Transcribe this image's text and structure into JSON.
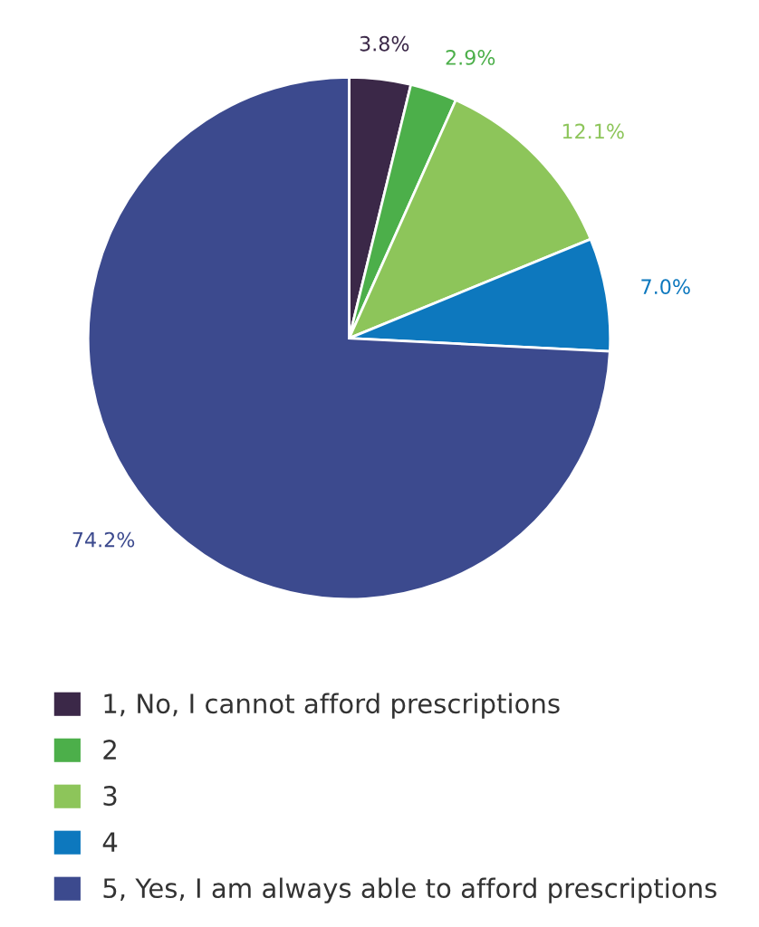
{
  "chart_data": {
    "type": "pie",
    "categories": [
      "1, No, I cannot afford prescriptions",
      "2",
      "3",
      "4",
      "5, Yes, I am always able to afford prescriptions"
    ],
    "values": [
      3.8,
      2.9,
      12.1,
      7.0,
      74.2
    ],
    "value_labels": [
      "3.8%",
      "2.9%",
      "12.1%",
      "7.0%",
      "74.2%"
    ],
    "colors": [
      "#3b2848",
      "#4caf4a",
      "#8dc55a",
      "#0d78be",
      "#3c4a8e"
    ],
    "legend": "bottom"
  }
}
